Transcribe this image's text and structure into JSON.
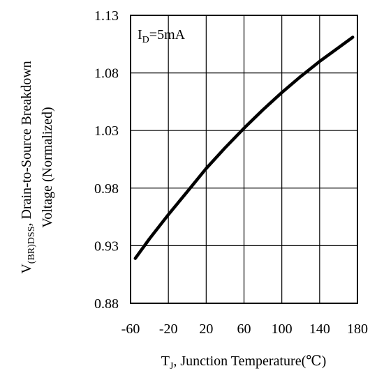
{
  "chart_data": {
    "type": "line",
    "title": "",
    "annotation": {
      "main": "I",
      "sub": "D",
      "rest": "=5mA"
    },
    "xlabel": {
      "main": "T",
      "sub": "J",
      "rest": ", Junction Temperature(℃)"
    },
    "ylabel": {
      "line1_main": "V",
      "line1_sub": "(BR)DSS",
      "line1_rest": ", Drain-to-Source Breakdown",
      "line2": "Voltage (Normalized)"
    },
    "xlim": [
      -60,
      180
    ],
    "ylim": [
      0.88,
      1.13
    ],
    "xticks": [
      "-60",
      "-20",
      "20",
      "60",
      "100",
      "140",
      "180"
    ],
    "yticks": [
      "0.88",
      "0.93",
      "0.98",
      "1.03",
      "1.08",
      "1.13"
    ],
    "grid": true,
    "series": [
      {
        "color": "#000000",
        "x": [
          -55,
          -40,
          -20,
          0,
          20,
          40,
          60,
          80,
          100,
          120,
          140,
          160,
          175
        ],
        "y": [
          0.919,
          0.936,
          0.957,
          0.977,
          0.997,
          1.015,
          1.032,
          1.048,
          1.063,
          1.077,
          1.09,
          1.102,
          1.111
        ]
      }
    ]
  }
}
